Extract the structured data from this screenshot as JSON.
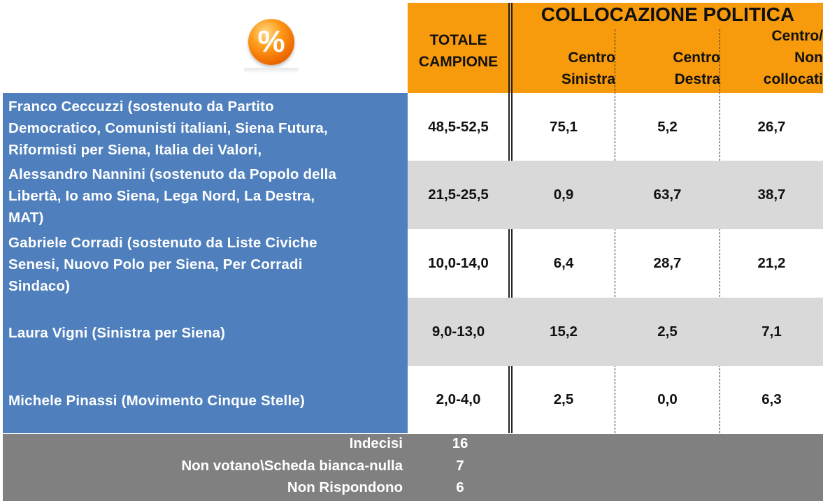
{
  "header": {
    "group_title": "COLLOCAZIONE POLITICA",
    "total_label_1": "TOTALE",
    "total_label_2": "CAMPIONE",
    "col1_line1": "Centro",
    "col1_line2": "Sinistra",
    "col2_line1": "Centro",
    "col2_line2": "Destra",
    "col3_line1": "Centro/",
    "col3_line2": "Non",
    "col3_line3": "collocati",
    "icon_symbol": "%"
  },
  "chart_data": {
    "type": "table",
    "columns": [
      "TOTALE CAMPIONE",
      "Centro Sinistra",
      "Centro Destra",
      "Centro/ Non collocati"
    ],
    "group_header": "COLLOCAZIONE POLITICA",
    "rows": [
      {
        "name_lines": [
          "Franco Ceccuzzi (sostenuto da Partito",
          "Democratico, Comunisti italiani, Siena Futura,",
          "Riformisti per Siena, Italia dei Valori,"
        ],
        "values": [
          "48,5-52,5",
          "75,1",
          "5,2",
          "26,7"
        ]
      },
      {
        "name_lines": [
          "Alessandro Nannini (sostenuto da Popolo della",
          "Libertà, Io amo Siena, Lega Nord, La Destra,",
          "MAT)"
        ],
        "values": [
          "21,5-25,5",
          "0,9",
          "63,7",
          "38,7"
        ]
      },
      {
        "name_lines": [
          "Gabriele Corradi (sostenuto da Liste Civiche",
          "Senesi, Nuovo Polo per Siena, Per Corradi",
          "Sindaco)"
        ],
        "values": [
          "10,0-14,0",
          "6,4",
          "28,7",
          "21,2"
        ]
      },
      {
        "name_lines": [
          "Laura Vigni (Sinistra per Siena)"
        ],
        "values": [
          "9,0-13,0",
          "15,2",
          "2,5",
          "7,1"
        ]
      },
      {
        "name_lines": [
          "Michele Pinassi (Movimento Cinque Stelle)"
        ],
        "values": [
          "2,0-4,0",
          "2,5",
          "0,0",
          "6,3"
        ]
      }
    ],
    "footer": [
      {
        "label": "Indecisi",
        "value": "16"
      },
      {
        "label": "Non votano\\Scheda bianca-nulla",
        "value": "7"
      },
      {
        "label": "Non Rispondono",
        "value": "6"
      }
    ]
  },
  "colors": {
    "header_orange": "#f79a0b",
    "name_blue": "#4f80bd",
    "row_gray": "#d9d9d9",
    "footer_gray": "#808080"
  }
}
